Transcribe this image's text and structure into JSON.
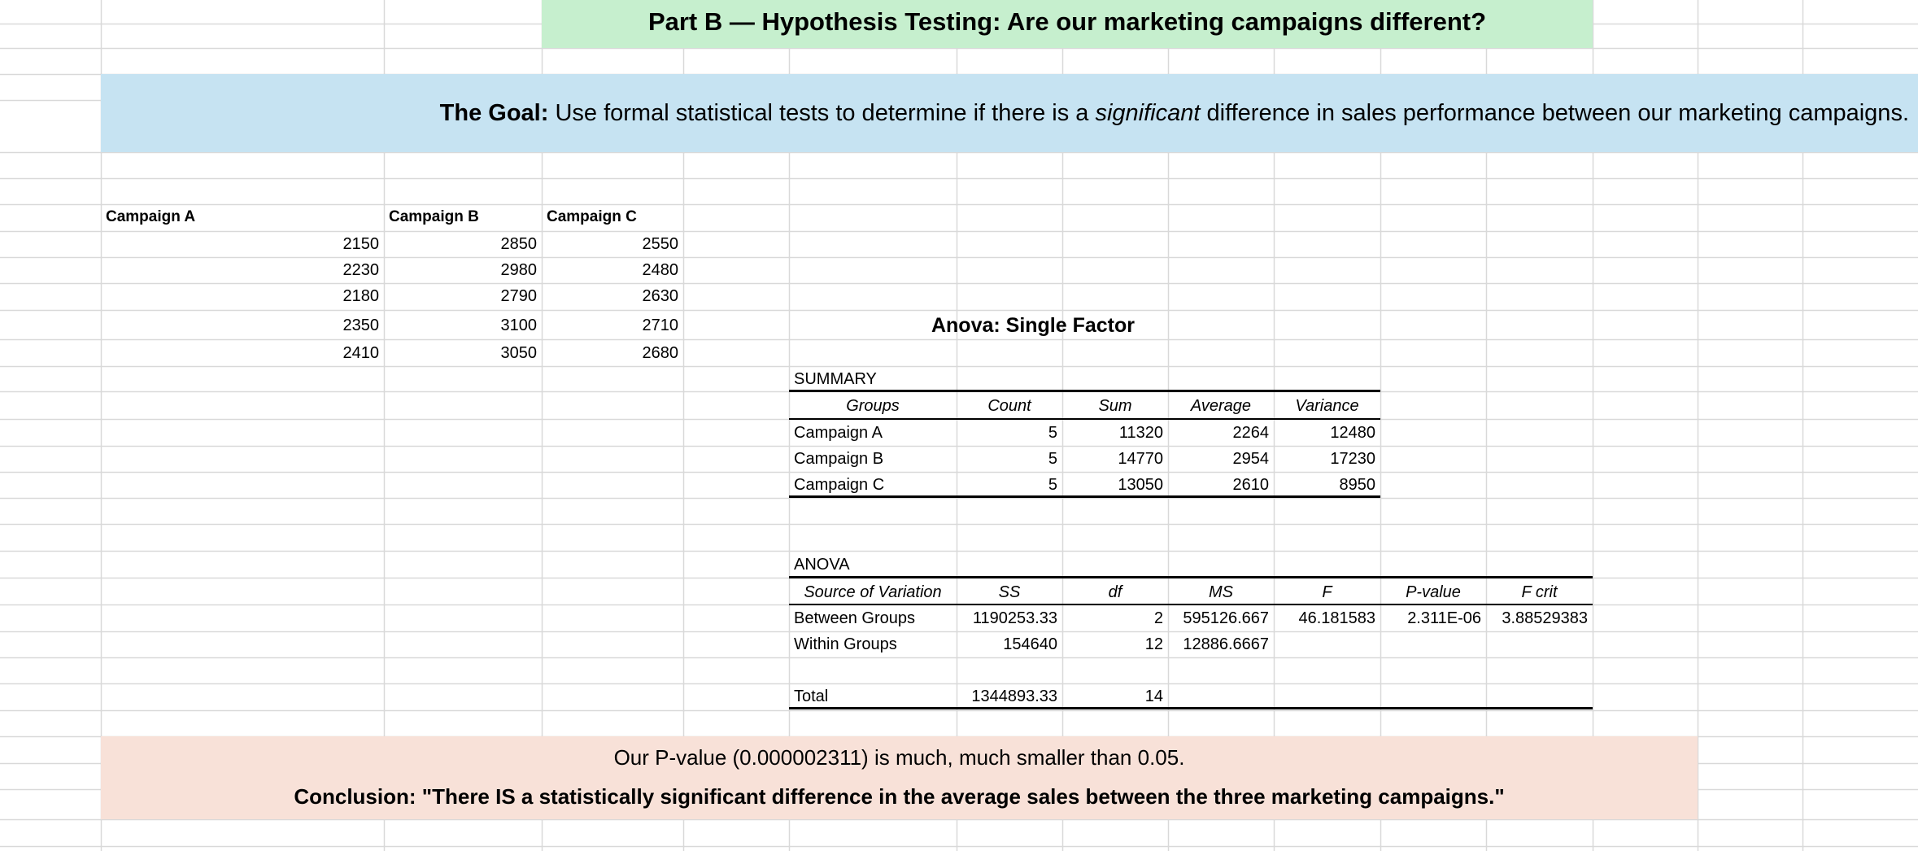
{
  "sheet": {
    "title": "Part B — Hypothesis Testing: Are our marketing campaigns different?",
    "goal_label": "The Goal:",
    "goal_text_before": " Use formal statistical tests to determine if there is a ",
    "goal_emphasis": "significant",
    "goal_text_after": "  difference in sales performance between our marketing campaigns.",
    "colors": {
      "title_bg": "#c6efce",
      "goal_bg": "#c6e3f2",
      "conclusion_bg": "#f8e1d8",
      "gridline": "#d9d9d9"
    }
  },
  "data_table": {
    "headers": [
      "Campaign A",
      "Campaign B",
      "Campaign C"
    ],
    "rows": [
      [
        "2150",
        "2850",
        "2550"
      ],
      [
        "2230",
        "2980",
        "2480"
      ],
      [
        "2180",
        "2790",
        "2630"
      ],
      [
        "2350",
        "3100",
        "2710"
      ],
      [
        "2410",
        "3050",
        "2680"
      ]
    ]
  },
  "anova": {
    "title": "Anova: Single Factor",
    "summary_label": "SUMMARY",
    "summary_headers": [
      "Groups",
      "Count",
      "Sum",
      "Average",
      "Variance"
    ],
    "summary_rows": [
      [
        "Campaign A",
        "5",
        "11320",
        "2264",
        "12480"
      ],
      [
        "Campaign B",
        "5",
        "14770",
        "2954",
        "17230"
      ],
      [
        "Campaign C",
        "5",
        "13050",
        "2610",
        "8950"
      ]
    ],
    "anova_label": "ANOVA",
    "anova_headers": [
      "Source of Variation",
      "SS",
      "df",
      "MS",
      "F",
      "P-value",
      "F crit"
    ],
    "anova_rows": [
      [
        "Between Groups",
        "1190253.33",
        "2",
        "595126.667",
        "46.181583",
        "2.311E-06",
        "3.88529383"
      ],
      [
        "Within Groups",
        "154640",
        "12",
        "12886.6667",
        "",
        "",
        ""
      ]
    ],
    "total_row": [
      "Total",
      "1344893.33",
      "14"
    ]
  },
  "conclusion": {
    "line1": "Our P-value (0.000002311) is much, much smaller than 0.05.",
    "line2": "Conclusion: \"There IS a statistically significant difference in the average sales between the three marketing campaigns.\""
  }
}
